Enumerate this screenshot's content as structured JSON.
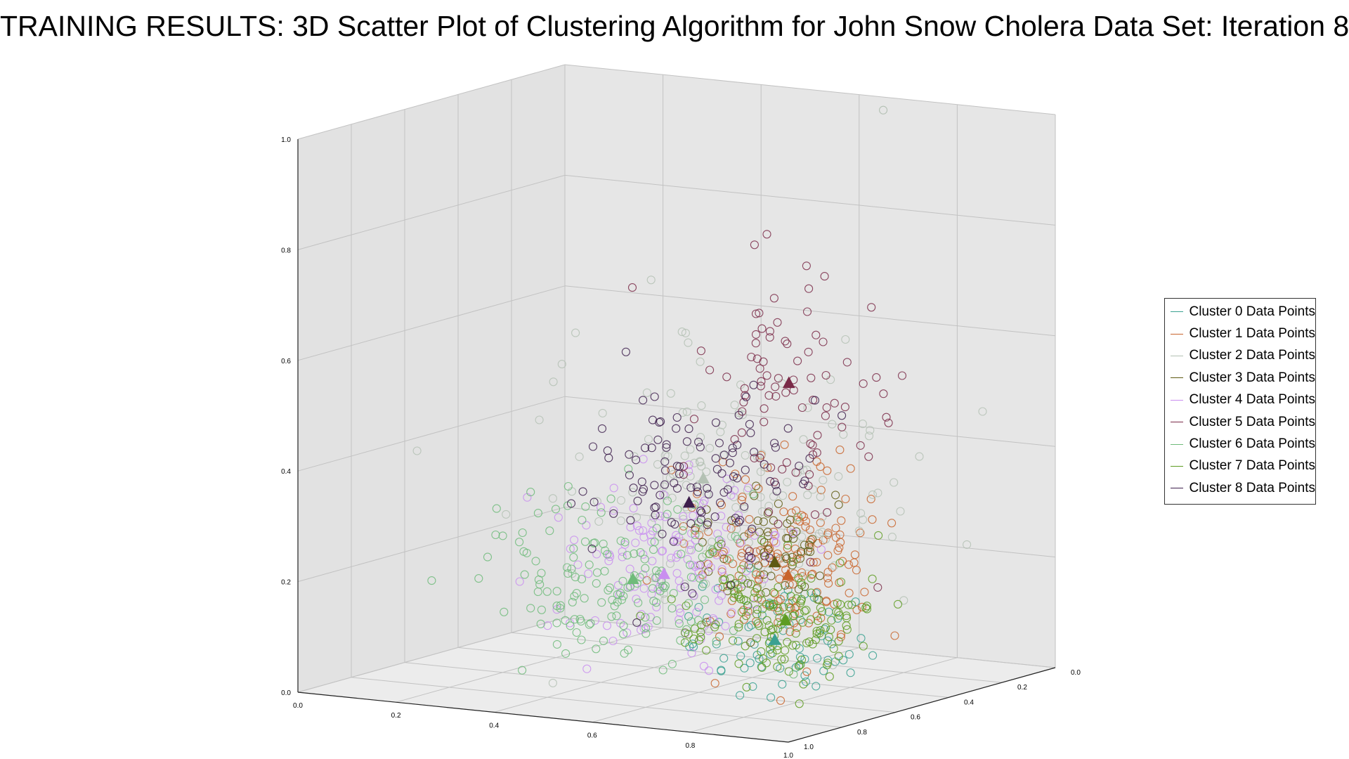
{
  "title": "TRAINING RESULTS: 3D Scatter Plot of Clustering Algorithm for John Snow Cholera Data Set: Iteration 8",
  "chart_data": {
    "type": "scatter",
    "projection": "3d",
    "title": "TRAINING RESULTS: 3D Scatter Plot of Clustering Algorithm for John Snow Cholera Data Set: Iteration 8",
    "xlabel": "",
    "ylabel": "",
    "zlabel": "",
    "xlim": [
      0.0,
      1.0
    ],
    "ylim": [
      0.0,
      1.0
    ],
    "zlim": [
      0.0,
      1.0
    ],
    "x_ticks": [
      "0.0",
      "0.2",
      "0.4",
      "0.6",
      "0.8",
      "1.0"
    ],
    "y_ticks": [
      "0.0",
      "0.2",
      "0.4",
      "0.6",
      "0.8",
      "1.0"
    ],
    "z_ticks": [
      "0.0",
      "0.2",
      "0.4",
      "0.6",
      "0.8",
      "1.0"
    ],
    "grid": true,
    "legend_position": "right",
    "marker": "hollow-circle",
    "centroid_marker": "filled-triangle",
    "series": [
      {
        "name": "Cluster 0 Data Points",
        "color": "#3aa191",
        "center": [
          0.82,
          0.72,
          0.13
        ],
        "spread": [
          0.09,
          0.08,
          0.05
        ],
        "count": 70,
        "centroid": [
          0.82,
          0.72,
          0.13
        ]
      },
      {
        "name": "Cluster 1 Data Points",
        "color": "#c8642c",
        "center": [
          0.76,
          0.56,
          0.25
        ],
        "spread": [
          0.09,
          0.08,
          0.08
        ],
        "count": 170,
        "centroid": [
          0.76,
          0.56,
          0.22
        ]
      },
      {
        "name": "Cluster 2 Data Points",
        "color": "#b4c1b4",
        "center": [
          0.5,
          0.4,
          0.33
        ],
        "spread": [
          0.17,
          0.18,
          0.12
        ],
        "count": 150,
        "centroid": [
          0.5,
          0.4,
          0.35
        ]
      },
      {
        "name": "Cluster 3 Data Points",
        "color": "#5e5a12",
        "center": [
          0.7,
          0.5,
          0.25
        ],
        "spread": [
          0.07,
          0.07,
          0.06
        ],
        "count": 60,
        "centroid": [
          0.7,
          0.5,
          0.23
        ]
      },
      {
        "name": "Cluster 4 Data Points",
        "color": "#c98ef0",
        "center": [
          0.42,
          0.4,
          0.17
        ],
        "spread": [
          0.1,
          0.1,
          0.08
        ],
        "count": 140,
        "centroid": [
          0.42,
          0.4,
          0.17
        ]
      },
      {
        "name": "Cluster 5 Data Points",
        "color": "#7a2a48",
        "center": [
          0.62,
          0.3,
          0.49
        ],
        "spread": [
          0.1,
          0.09,
          0.12
        ],
        "count": 90,
        "centroid": [
          0.62,
          0.3,
          0.52
        ]
      },
      {
        "name": "Cluster 6 Data Points",
        "color": "#6fbb7a",
        "center": [
          0.38,
          0.48,
          0.17
        ],
        "spread": [
          0.11,
          0.12,
          0.07
        ],
        "count": 160,
        "centroid": [
          0.4,
          0.48,
          0.17
        ]
      },
      {
        "name": "Cluster 7 Data Points",
        "color": "#5e9c22",
        "center": [
          0.82,
          0.68,
          0.16
        ],
        "spread": [
          0.08,
          0.08,
          0.06
        ],
        "count": 160,
        "centroid": [
          0.82,
          0.68,
          0.16
        ]
      },
      {
        "name": "Cluster 8 Data Points",
        "color": "#3d1e4c",
        "center": [
          0.46,
          0.36,
          0.33
        ],
        "spread": [
          0.1,
          0.1,
          0.08
        ],
        "count": 110,
        "centroid": [
          0.46,
          0.38,
          0.3
        ]
      }
    ]
  }
}
